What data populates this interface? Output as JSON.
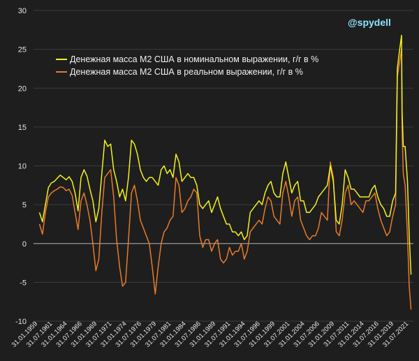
{
  "chart_data": {
    "type": "line",
    "watermark": "@spydell",
    "ylim": [
      -10,
      30
    ],
    "yticks": [
      -10,
      -5,
      0,
      5,
      10,
      15,
      20,
      25,
      30
    ],
    "xlim": [
      1959.0,
      2023.0
    ],
    "xtick_labels": [
      "31.01.1959",
      "31.07.1961",
      "31.01.1964",
      "31.07.1966",
      "31.01.1969",
      "31.07.1971",
      "31.01.1974",
      "31.07.1976",
      "31.01.1979",
      "31.07.1981",
      "31.01.1984",
      "31.07.1986",
      "31.01.1989",
      "31.07.1991",
      "31.01.1994",
      "31.07.1996",
      "31.01.1999",
      "31.07.2001",
      "31.01.2004",
      "31.07.2006",
      "31.01.2009",
      "31.07.2011",
      "31.01.2014",
      "31.07.2016",
      "31.01.2019",
      "31.07.2021"
    ],
    "series": [
      {
        "name": "Денежная масса М2 США в номинальном выражении, г/г в %",
        "color": "#f2f21e",
        "x": [
          1960.0,
          1960.5,
          1961.0,
          1961.5,
          1962.0,
          1962.5,
          1963.0,
          1963.5,
          1964.0,
          1964.5,
          1965.0,
          1965.5,
          1966.0,
          1966.5,
          1967.0,
          1967.5,
          1968.0,
          1968.5,
          1969.0,
          1969.5,
          1970.0,
          1970.5,
          1971.0,
          1971.5,
          1972.0,
          1972.5,
          1973.0,
          1973.5,
          1974.0,
          1974.5,
          1975.0,
          1975.5,
          1976.0,
          1976.5,
          1977.0,
          1977.5,
          1978.0,
          1978.5,
          1979.0,
          1979.5,
          1980.0,
          1980.5,
          1981.0,
          1981.5,
          1982.0,
          1982.5,
          1983.0,
          1983.5,
          1984.0,
          1984.5,
          1985.0,
          1985.5,
          1986.0,
          1986.5,
          1987.0,
          1987.5,
          1988.0,
          1988.5,
          1989.0,
          1989.5,
          1990.0,
          1990.5,
          1991.0,
          1991.5,
          1992.0,
          1992.5,
          1993.0,
          1993.5,
          1994.0,
          1994.5,
          1995.0,
          1995.5,
          1996.0,
          1996.5,
          1997.0,
          1997.5,
          1998.0,
          1998.5,
          1999.0,
          1999.5,
          2000.0,
          2000.5,
          2001.0,
          2001.5,
          2002.0,
          2002.5,
          2003.0,
          2003.5,
          2004.0,
          2004.5,
          2005.0,
          2005.5,
          2006.0,
          2006.5,
          2007.0,
          2007.5,
          2008.0,
          2008.5,
          2009.0,
          2009.5,
          2010.0,
          2010.5,
          2011.0,
          2011.5,
          2012.0,
          2012.5,
          2013.0,
          2013.5,
          2014.0,
          2014.5,
          2015.0,
          2015.5,
          2016.0,
          2016.5,
          2017.0,
          2017.5,
          2018.0,
          2018.5,
          2019.0,
          2019.5,
          2020.0,
          2020.3,
          2020.6,
          2021.0,
          2021.1,
          2021.3,
          2021.6,
          2022.0,
          2022.3,
          2022.6
        ],
        "y": [
          4.0,
          2.8,
          5.0,
          7.2,
          7.8,
          8.0,
          8.4,
          8.8,
          8.5,
          8.2,
          8.6,
          8.0,
          6.5,
          4.2,
          8.5,
          9.5,
          8.7,
          7.0,
          5.5,
          2.8,
          4.5,
          9.0,
          13.3,
          12.5,
          12.8,
          9.5,
          8.0,
          6.0,
          7.0,
          5.5,
          8.5,
          13.3,
          12.8,
          11.5,
          9.5,
          8.5,
          8.0,
          8.5,
          8.5,
          8.0,
          7.5,
          9.5,
          10.0,
          9.0,
          9.5,
          8.5,
          11.5,
          10.5,
          8.0,
          8.5,
          9.0,
          8.5,
          8.5,
          7.5,
          5.0,
          4.5,
          5.0,
          5.5,
          4.0,
          5.0,
          6.0,
          4.5,
          3.5,
          2.5,
          2.5,
          1.5,
          1.5,
          1.0,
          1.5,
          0.5,
          1.0,
          4.0,
          4.5,
          5.0,
          5.5,
          5.0,
          6.5,
          7.5,
          8.0,
          6.5,
          6.0,
          6.0,
          9.0,
          10.5,
          8.5,
          6.5,
          7.5,
          8.0,
          5.5,
          5.5,
          4.0,
          4.0,
          4.5,
          5.0,
          6.0,
          6.5,
          7.0,
          7.5,
          10.0,
          8.0,
          3.0,
          2.5,
          5.0,
          9.5,
          8.5,
          7.0,
          7.0,
          6.5,
          6.0,
          6.0,
          6.0,
          6.0,
          7.0,
          7.5,
          6.0,
          5.0,
          4.5,
          3.5,
          3.5,
          5.5,
          6.5,
          22.5,
          24.5,
          26.8,
          17.0,
          12.5,
          12.5,
          8.0,
          1.0,
          -4.0
        ]
      },
      {
        "name": "Денежная масса М2 США в реальном выражении, г/г в %",
        "color": "#e87b2a",
        "x": [
          1960.0,
          1960.5,
          1961.0,
          1961.5,
          1962.0,
          1962.5,
          1963.0,
          1963.5,
          1964.0,
          1964.5,
          1965.0,
          1965.5,
          1966.0,
          1966.5,
          1967.0,
          1967.5,
          1968.0,
          1968.5,
          1969.0,
          1969.5,
          1970.0,
          1970.5,
          1971.0,
          1971.5,
          1972.0,
          1972.5,
          1973.0,
          1973.5,
          1974.0,
          1974.5,
          1975.0,
          1975.5,
          1976.0,
          1976.5,
          1977.0,
          1977.5,
          1978.0,
          1978.5,
          1979.0,
          1979.5,
          1980.0,
          1980.5,
          1981.0,
          1981.5,
          1982.0,
          1982.5,
          1983.0,
          1983.5,
          1984.0,
          1984.5,
          1985.0,
          1985.5,
          1986.0,
          1986.5,
          1987.0,
          1987.5,
          1988.0,
          1988.5,
          1989.0,
          1989.5,
          1990.0,
          1990.5,
          1991.0,
          1991.5,
          1992.0,
          1992.5,
          1993.0,
          1993.5,
          1994.0,
          1994.5,
          1995.0,
          1995.5,
          1996.0,
          1996.5,
          1997.0,
          1997.5,
          1998.0,
          1998.5,
          1999.0,
          1999.5,
          2000.0,
          2000.5,
          2001.0,
          2001.5,
          2002.0,
          2002.5,
          2003.0,
          2003.5,
          2004.0,
          2004.5,
          2005.0,
          2005.5,
          2006.0,
          2006.5,
          2007.0,
          2007.5,
          2008.0,
          2008.5,
          2009.0,
          2009.5,
          2010.0,
          2010.5,
          2011.0,
          2011.5,
          2012.0,
          2012.5,
          2013.0,
          2013.5,
          2014.0,
          2014.5,
          2015.0,
          2015.5,
          2016.0,
          2016.5,
          2017.0,
          2017.5,
          2018.0,
          2018.5,
          2019.0,
          2019.5,
          2020.0,
          2020.3,
          2020.6,
          2021.0,
          2021.1,
          2021.3,
          2021.6,
          2022.0,
          2022.3,
          2022.6
        ],
        "y": [
          2.5,
          1.2,
          4.0,
          6.0,
          6.5,
          6.8,
          7.0,
          7.3,
          7.2,
          6.8,
          7.0,
          6.2,
          4.0,
          1.8,
          5.5,
          6.5,
          5.0,
          3.0,
          0.0,
          -3.5,
          -2.0,
          4.0,
          8.5,
          9.0,
          9.5,
          6.0,
          0.5,
          -3.0,
          -5.5,
          -5.0,
          0.5,
          6.5,
          7.5,
          5.5,
          3.0,
          2.0,
          1.0,
          0.0,
          -3.0,
          -6.5,
          -3.0,
          0.0,
          1.5,
          2.0,
          3.0,
          3.5,
          8.5,
          7.5,
          4.0,
          4.5,
          5.5,
          6.0,
          7.0,
          6.5,
          1.0,
          -0.5,
          0.5,
          0.5,
          -1.0,
          0.0,
          0.5,
          -2.0,
          -2.5,
          -2.0,
          -0.5,
          -1.5,
          -1.0,
          -1.0,
          0.0,
          -2.0,
          -1.0,
          1.5,
          2.0,
          2.5,
          3.0,
          2.5,
          4.5,
          6.0,
          5.5,
          3.5,
          3.0,
          2.5,
          6.5,
          8.0,
          6.0,
          3.5,
          5.5,
          6.0,
          3.0,
          2.0,
          1.0,
          0.5,
          1.0,
          1.0,
          2.0,
          4.0,
          3.5,
          3.0,
          10.5,
          8.5,
          1.5,
          1.0,
          3.0,
          6.5,
          7.5,
          5.0,
          5.5,
          5.0,
          4.5,
          4.0,
          5.5,
          5.5,
          6.0,
          6.5,
          4.5,
          3.0,
          2.0,
          1.0,
          1.5,
          3.5,
          5.0,
          21.5,
          23.0,
          25.0,
          14.5,
          9.0,
          7.5,
          1.0,
          -5.5,
          -8.5
        ]
      }
    ]
  }
}
